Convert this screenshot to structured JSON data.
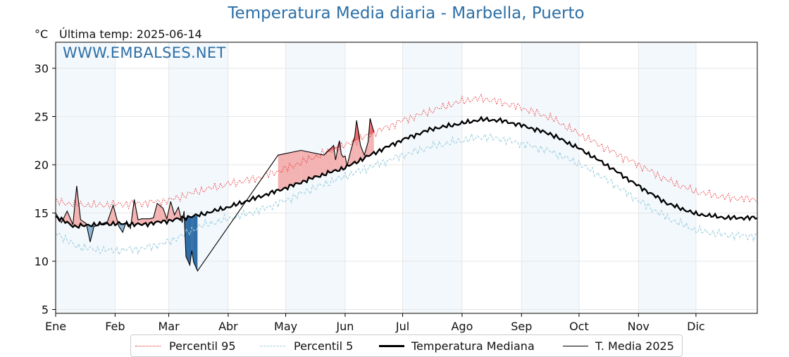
{
  "chart_data": {
    "type": "line",
    "title": "Temperatura Media diaria - Marbella, Puerto",
    "unit": "°C",
    "last_temp_label": "Última temp: 2025-06-14",
    "watermark": "WWW.EMBALSES.NET",
    "ylim": [
      4.6,
      32.7
    ],
    "yticks": [
      5,
      10,
      15,
      20,
      25,
      30
    ],
    "x_range_days": [
      0,
      366
    ],
    "months": [
      {
        "label": "Ene",
        "day": 0
      },
      {
        "label": "Feb",
        "day": 31
      },
      {
        "label": "Mar",
        "day": 59
      },
      {
        "label": "Abr",
        "day": 90
      },
      {
        "label": "May",
        "day": 120
      },
      {
        "label": "Jun",
        "day": 151
      },
      {
        "label": "Jul",
        "day": 181
      },
      {
        "label": "Ago",
        "day": 212
      },
      {
        "label": "Sep",
        "day": 243
      },
      {
        "label": "Oct",
        "day": 273
      },
      {
        "label": "Nov",
        "day": 304
      },
      {
        "label": "Dic",
        "day": 334
      }
    ],
    "shaded_bands": [
      [
        0,
        31
      ],
      [
        59,
        90
      ],
      [
        120,
        151
      ],
      [
        181,
        212
      ],
      [
        243,
        273
      ],
      [
        304,
        334
      ]
    ],
    "grid": true,
    "legend_position": "bottom",
    "series": [
      {
        "name": "Percentil 95",
        "color": "#e8262a",
        "style": "dotted",
        "points": [
          [
            0,
            16.2
          ],
          [
            10,
            15.9
          ],
          [
            20,
            15.8
          ],
          [
            31,
            15.9
          ],
          [
            45,
            16.0
          ],
          [
            59,
            16.3
          ],
          [
            75,
            17.3
          ],
          [
            90,
            18.0
          ],
          [
            105,
            18.6
          ],
          [
            120,
            19.6
          ],
          [
            135,
            20.8
          ],
          [
            151,
            22.0
          ],
          [
            166,
            23.3
          ],
          [
            181,
            24.6
          ],
          [
            196,
            25.6
          ],
          [
            212,
            26.6
          ],
          [
            222,
            26.9
          ],
          [
            232,
            26.5
          ],
          [
            243,
            25.9
          ],
          [
            258,
            24.9
          ],
          [
            273,
            23.2
          ],
          [
            288,
            21.6
          ],
          [
            304,
            20.0
          ],
          [
            319,
            18.4
          ],
          [
            334,
            17.2
          ],
          [
            350,
            16.6
          ],
          [
            366,
            16.4
          ]
        ]
      },
      {
        "name": "Percentil 5",
        "color": "#9ecfe0",
        "style": "dashed",
        "points": [
          [
            0,
            13.0
          ],
          [
            10,
            11.6
          ],
          [
            20,
            11.2
          ],
          [
            31,
            11.1
          ],
          [
            45,
            11.3
          ],
          [
            59,
            12.0
          ],
          [
            75,
            13.6
          ],
          [
            90,
            14.4
          ],
          [
            105,
            15.2
          ],
          [
            120,
            16.3
          ],
          [
            135,
            17.6
          ],
          [
            151,
            18.8
          ],
          [
            166,
            19.9
          ],
          [
            181,
            21.0
          ],
          [
            196,
            21.9
          ],
          [
            212,
            22.5
          ],
          [
            222,
            22.9
          ],
          [
            232,
            22.7
          ],
          [
            243,
            22.2
          ],
          [
            258,
            21.4
          ],
          [
            273,
            20.1
          ],
          [
            288,
            18.4
          ],
          [
            304,
            16.3
          ],
          [
            319,
            14.5
          ],
          [
            334,
            13.2
          ],
          [
            350,
            12.7
          ],
          [
            366,
            12.6
          ]
        ]
      },
      {
        "name": "Temperatura Mediana",
        "color": "#000000",
        "style": "solid-thick",
        "points": [
          [
            0,
            14.6
          ],
          [
            10,
            13.6
          ],
          [
            20,
            13.8
          ],
          [
            31,
            13.9
          ],
          [
            45,
            13.8
          ],
          [
            59,
            14.2
          ],
          [
            75,
            14.8
          ],
          [
            90,
            15.6
          ],
          [
            105,
            16.6
          ],
          [
            120,
            17.6
          ],
          [
            135,
            18.7
          ],
          [
            151,
            19.7
          ],
          [
            166,
            21.2
          ],
          [
            181,
            22.6
          ],
          [
            196,
            23.7
          ],
          [
            212,
            24.3
          ],
          [
            222,
            24.7
          ],
          [
            232,
            24.6
          ],
          [
            243,
            24.1
          ],
          [
            258,
            23.2
          ],
          [
            273,
            21.7
          ],
          [
            288,
            19.9
          ],
          [
            304,
            17.8
          ],
          [
            319,
            16.0
          ],
          [
            334,
            14.9
          ],
          [
            350,
            14.5
          ],
          [
            366,
            14.5
          ]
        ]
      },
      {
        "name": "T. Media 2025",
        "color": "#000000",
        "style": "solid-thin",
        "points": [
          [
            0,
            15.0
          ],
          [
            3,
            14.0
          ],
          [
            6,
            15.2
          ],
          [
            9,
            13.8
          ],
          [
            11,
            17.8
          ],
          [
            13,
            14.3
          ],
          [
            16,
            13.9
          ],
          [
            18,
            12.0
          ],
          [
            20,
            13.6
          ],
          [
            23,
            13.8
          ],
          [
            27,
            14.1
          ],
          [
            30,
            15.8
          ],
          [
            33,
            13.6
          ],
          [
            35,
            13.0
          ],
          [
            37,
            14.2
          ],
          [
            39,
            13.4
          ],
          [
            41,
            16.4
          ],
          [
            43,
            14.3
          ],
          [
            45,
            14.4
          ],
          [
            47,
            14.4
          ],
          [
            49,
            14.4
          ],
          [
            51,
            14.5
          ],
          [
            53,
            16.0
          ],
          [
            56,
            15.5
          ],
          [
            58,
            14.4
          ],
          [
            60,
            16.2
          ],
          [
            62,
            14.8
          ],
          [
            64,
            15.6
          ],
          [
            66,
            14.0
          ],
          [
            67,
            15.2
          ],
          [
            68,
            10.5
          ],
          [
            70,
            9.6
          ],
          [
            71,
            11.1
          ],
          [
            72,
            9.9
          ],
          [
            74,
            9.0
          ],
          [
            116,
            21.0
          ],
          [
            128,
            21.5
          ],
          [
            140,
            21.0
          ],
          [
            145,
            22.0
          ],
          [
            146,
            20.5
          ],
          [
            148,
            22.5
          ],
          [
            149,
            21.1
          ],
          [
            150,
            20.8
          ],
          [
            151,
            20.9
          ],
          [
            152,
            19.9
          ],
          [
            154,
            21.5
          ],
          [
            156,
            22.9
          ],
          [
            157,
            24.6
          ],
          [
            159,
            22.0
          ],
          [
            161,
            21.0
          ],
          [
            163,
            22.4
          ],
          [
            164,
            24.8
          ],
          [
            166,
            23.4
          ]
        ]
      }
    ]
  },
  "legend": {
    "items": [
      {
        "label": "Percentil 95"
      },
      {
        "label": "Percentil 5"
      },
      {
        "label": "Temperatura Mediana"
      },
      {
        "label": "T. Media 2025"
      }
    ]
  }
}
